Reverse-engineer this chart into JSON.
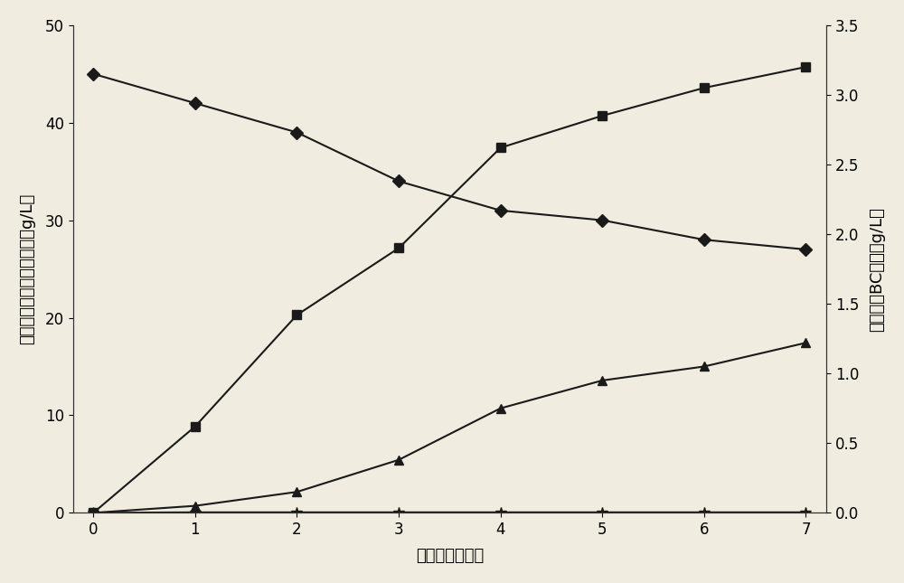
{
  "x": [
    0,
    1,
    2,
    3,
    4,
    5,
    6,
    7
  ],
  "series_diamond_left": [
    45,
    42,
    39,
    34,
    31,
    30,
    28,
    27
  ],
  "series_star_left": [
    0,
    0.05,
    0.05,
    0.05,
    0.05,
    0.05,
    0.05,
    0.05
  ],
  "series_square_right": [
    0,
    0.62,
    1.42,
    1.9,
    2.62,
    2.85,
    3.05,
    3.2
  ],
  "series_triangle_right": [
    0,
    0.05,
    0.15,
    0.38,
    0.75,
    0.95,
    1.05,
    1.22
  ],
  "left_ylim": [
    0,
    50
  ],
  "right_ylim": [
    0,
    3.5
  ],
  "left_yticks": [
    0,
    10,
    20,
    30,
    40,
    50
  ],
  "right_yticks": [
    0,
    0.5,
    1.0,
    1.5,
    2.0,
    2.5,
    3.0,
    3.5
  ],
  "xticks": [
    0,
    1,
    2,
    3,
    4,
    5,
    6,
    7
  ],
  "xlabel": "发酵时间（天）",
  "ylabel_left": "残糖、乙酸及乙醇残余量（g/L）",
  "ylabel_right": "菌体量厼BC产量（g/L）",
  "line_color": "#1a1a1a",
  "bg_color": "#f0ece0",
  "marker_diamond": "D",
  "marker_square": "s",
  "marker_triangle": "^",
  "marker_star": "*",
  "linewidth": 1.5,
  "markersize": 7,
  "star_markersize": 9,
  "title_fontsize": 12,
  "label_fontsize": 13,
  "tick_fontsize": 12
}
